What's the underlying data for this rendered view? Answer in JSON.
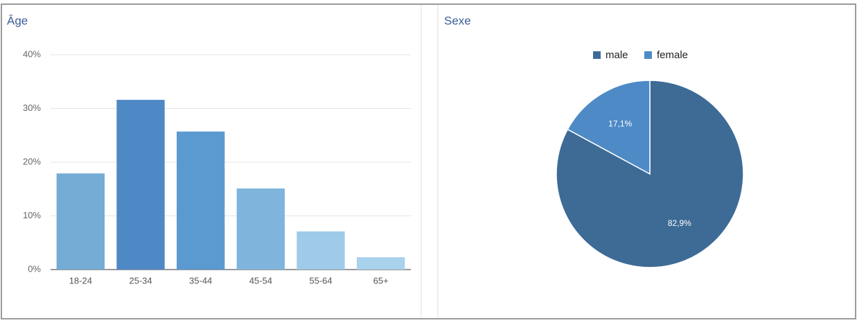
{
  "chart_data": [
    {
      "type": "bar",
      "title": "Âge",
      "categories": [
        "18-24",
        "25-34",
        "35-44",
        "45-54",
        "55-64",
        "65+"
      ],
      "values": [
        17.9,
        31.6,
        25.7,
        15.1,
        7.1,
        2.3
      ],
      "colors": [
        "#74acd5",
        "#4e88c5",
        "#5b9ad0",
        "#7fb5dc",
        "#9fcbe8",
        "#a9d2ec"
      ],
      "ylim": [
        0,
        40
      ],
      "yticks": [
        {
          "value": 0,
          "label": "0%"
        },
        {
          "value": 10,
          "label": "10%"
        },
        {
          "value": 20,
          "label": "20%"
        },
        {
          "value": 30,
          "label": "30%"
        },
        {
          "value": 40,
          "label": "40%"
        }
      ],
      "grid": true
    },
    {
      "type": "pie",
      "title": "Sexe",
      "categories": [
        "male",
        "female"
      ],
      "values": [
        82.9,
        17.1
      ],
      "value_labels": [
        "82,9%",
        "17,1%"
      ],
      "colors": [
        "#3d6b96",
        "#4e8ac6"
      ],
      "legend": "top"
    }
  ]
}
